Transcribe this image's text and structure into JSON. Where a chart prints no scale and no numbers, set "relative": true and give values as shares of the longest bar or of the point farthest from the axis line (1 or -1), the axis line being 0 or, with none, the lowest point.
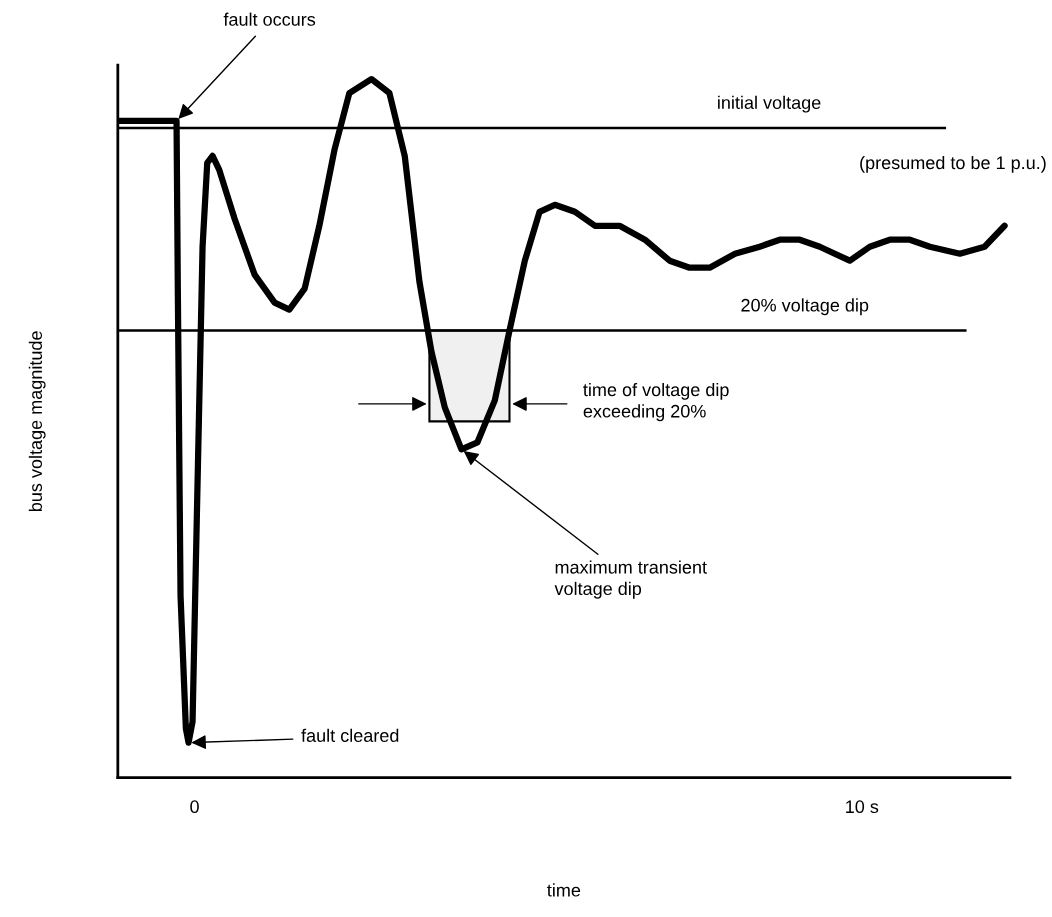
{
  "chart_data": {
    "type": "line",
    "relative": true,
    "xlabel": "time",
    "ylabel": "bus voltage magnitude",
    "xlim": [
      -1.15,
      12.22
    ],
    "xticks": [
      0,
      {
        "value": 10,
        "label": "10 s"
      }
    ],
    "x": [
      -1.15,
      -0.27,
      -0.25,
      -0.21,
      -0.13,
      -0.09,
      -0.03,
      0.04,
      0.12,
      0.19,
      0.27,
      0.37,
      0.6,
      0.9,
      1.2,
      1.42,
      1.65,
      1.87,
      2.1,
      2.32,
      2.65,
      2.92,
      3.15,
      3.37,
      3.55,
      3.75,
      4.0,
      4.24,
      4.5,
      4.72,
      4.95,
      5.17,
      5.4,
      5.7,
      6.0,
      6.37,
      6.75,
      7.12,
      7.42,
      7.72,
      8.1,
      8.47,
      8.77,
      9.07,
      9.37,
      9.82,
      10.12,
      10.42,
      10.72,
      11.02,
      11.47,
      11.84,
      12.14
    ],
    "series": [
      {
        "color": "#000000",
        "values": [
          0.94,
          0.94,
          0.69,
          0.26,
          0.07,
          0.05,
          0.08,
          0.4,
          0.76,
          0.88,
          0.89,
          0.87,
          0.8,
          0.72,
          0.68,
          0.67,
          0.7,
          0.79,
          0.9,
          0.98,
          1.0,
          0.98,
          0.89,
          0.71,
          0.61,
          0.53,
          0.47,
          0.48,
          0.54,
          0.64,
          0.74,
          0.81,
          0.82,
          0.81,
          0.79,
          0.79,
          0.77,
          0.74,
          0.73,
          0.73,
          0.75,
          0.76,
          0.77,
          0.77,
          0.76,
          0.74,
          0.76,
          0.77,
          0.77,
          0.76,
          0.75,
          0.76,
          0.79
        ]
      }
    ],
    "ref_lines": [
      {
        "axis": "y",
        "value": 0.93,
        "label": "initial voltage",
        "color": "#000000"
      },
      {
        "axis": "y",
        "value": 0.64,
        "label": "20% voltage dip",
        "color": "#000000"
      }
    ],
    "bands": [
      {
        "axis": "x",
        "from": 3.52,
        "to": 4.72,
        "label": "time of voltage dip\nexceeding 20%",
        "color": "#f0f0f0"
      }
    ],
    "annotations": [
      "(presumed to be 1 p.u.)",
      {
        "text": "fault occurs",
        "x": -0.27,
        "y": 0.94
      },
      {
        "text": "fault cleared",
        "x": -0.09,
        "y": 0.05
      },
      {
        "text": "maximum transient\nvoltage dip",
        "x": 4.0,
        "y": 0.47
      }
    ],
    "grid": false,
    "marker": "none",
    "line_style": "solid"
  }
}
